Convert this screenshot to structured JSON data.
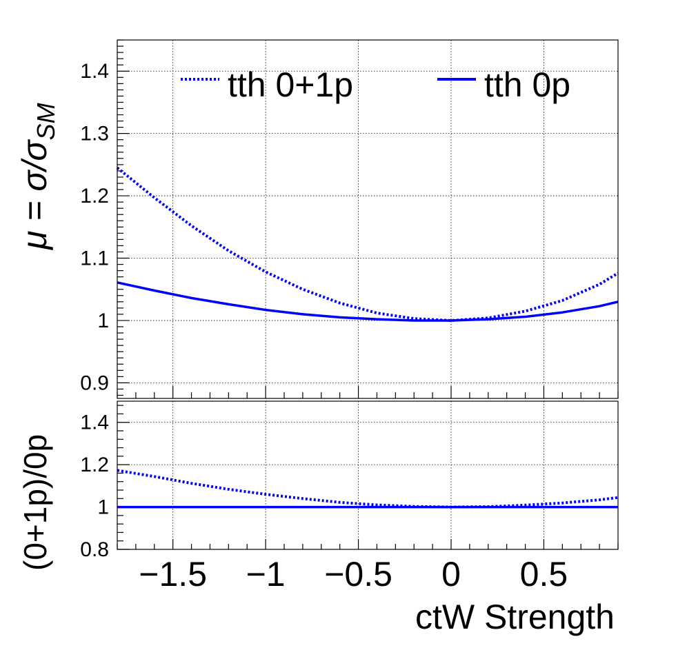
{
  "chart_data": [
    {
      "type": "line",
      "panel": "main",
      "ylabel": "μ = σ/σ_SM",
      "ylabel_parts": {
        "prefix": "μ = σ/σ",
        "sub": "SM"
      },
      "xlim": [
        -1.8,
        0.9
      ],
      "ylim": [
        0.875,
        1.45
      ],
      "yticks": [
        0.9,
        1.0,
        1.1,
        1.2,
        1.3,
        1.4
      ],
      "ytick_labels": [
        "0.9",
        "1",
        "1.1",
        "1.2",
        "1.3",
        "1.4"
      ],
      "grid": true,
      "legend": {
        "placement": "top",
        "entries": [
          {
            "label": "tth 0+1p",
            "style": "dotted"
          },
          {
            "label": "tth 0p",
            "style": "solid"
          }
        ]
      },
      "series": [
        {
          "name": "tth 0+1p",
          "style": "dotted",
          "color": "#0000ff",
          "x": [
            -1.8,
            -1.6,
            -1.4,
            -1.2,
            -1.0,
            -0.8,
            -0.6,
            -0.4,
            -0.2,
            0.0,
            0.2,
            0.4,
            0.6,
            0.8,
            0.9
          ],
          "y": [
            1.245,
            1.197,
            1.152,
            1.112,
            1.078,
            1.05,
            1.028,
            1.012,
            1.003,
            1.0,
            1.004,
            1.015,
            1.032,
            1.058,
            1.076
          ]
        },
        {
          "name": "tth 0p",
          "style": "solid",
          "color": "#0000ff",
          "x": [
            -1.8,
            -1.6,
            -1.4,
            -1.2,
            -1.0,
            -0.8,
            -0.6,
            -0.4,
            -0.2,
            0.0,
            0.2,
            0.4,
            0.6,
            0.8,
            0.9
          ],
          "y": [
            1.061,
            1.048,
            1.036,
            1.026,
            1.017,
            1.01,
            1.005,
            1.002,
            1.0,
            1.0,
            1.002,
            1.006,
            1.013,
            1.023,
            1.03
          ]
        }
      ]
    },
    {
      "type": "line",
      "panel": "ratio",
      "ylabel": "(0+1p)/0p",
      "xlabel": "ctW Strength",
      "xlim": [
        -1.8,
        0.9
      ],
      "ylim": [
        0.8,
        1.5
      ],
      "yticks": [
        0.8,
        1.0,
        1.2,
        1.4
      ],
      "ytick_labels": [
        "0.8",
        "1",
        "1.2",
        "1.4"
      ],
      "xticks": [
        -1.5,
        -1.0,
        -0.5,
        0.0,
        0.5
      ],
      "xtick_labels": [
        "−1.5",
        "−1",
        "−0.5",
        "0",
        "0.5"
      ],
      "grid": true,
      "series": [
        {
          "name": "tth 0+1p",
          "style": "dotted",
          "color": "#0000ff",
          "x": [
            -1.8,
            -1.6,
            -1.4,
            -1.2,
            -1.0,
            -0.8,
            -0.6,
            -0.4,
            -0.2,
            0.0,
            0.2,
            0.4,
            0.6,
            0.8,
            0.9
          ],
          "y": [
            1.173,
            1.144,
            1.112,
            1.084,
            1.06,
            1.04,
            1.022,
            1.01,
            1.003,
            1.0,
            1.002,
            1.009,
            1.019,
            1.034,
            1.045
          ]
        },
        {
          "name": "tth 0p",
          "style": "solid",
          "color": "#0000ff",
          "x": [
            -1.8,
            -1.6,
            -1.4,
            -1.2,
            -1.0,
            -0.8,
            -0.6,
            -0.4,
            -0.2,
            0.0,
            0.2,
            0.4,
            0.6,
            0.8,
            0.9
          ],
          "y": [
            1.0,
            1.0,
            1.0,
            1.0,
            1.0,
            1.0,
            1.0,
            1.0,
            1.0,
            1.0,
            1.0,
            1.0,
            1.0,
            1.0,
            1.0
          ]
        }
      ]
    }
  ]
}
